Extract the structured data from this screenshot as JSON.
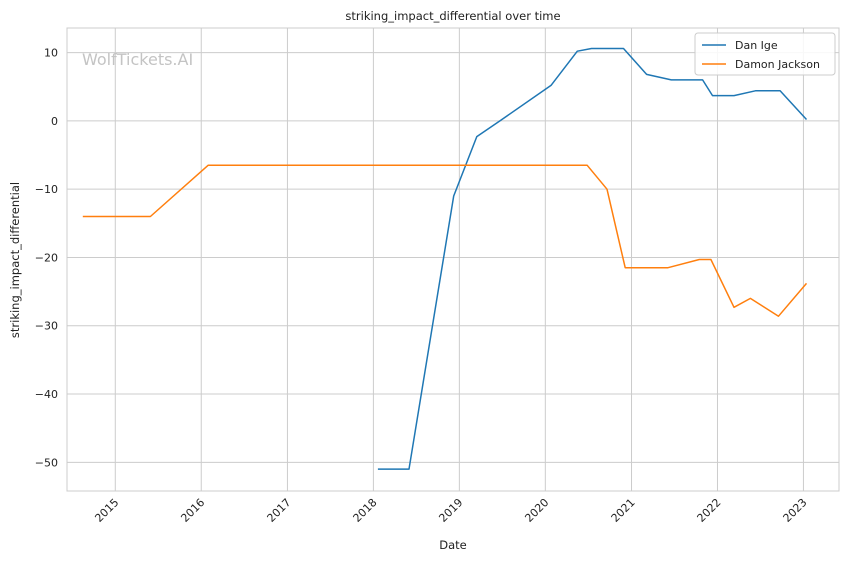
{
  "chart_data": {
    "type": "line",
    "title": "striking_impact_differential over time",
    "xlabel": "Date",
    "ylabel": "striking_impact_differential",
    "watermark": "WolfTickets.AI",
    "x_tick_labels": [
      "2015",
      "2016",
      "2017",
      "2018",
      "2019",
      "2020",
      "2021",
      "2022",
      "2023"
    ],
    "y_ticks": [
      10,
      0,
      -10,
      -20,
      -30,
      -40,
      -50
    ],
    "y_tick_labels": [
      "10",
      "0",
      "−10",
      "−20",
      "−30",
      "−40",
      "−50"
    ],
    "xlim": [
      "2014-06-10",
      "2023-06-01"
    ],
    "ylim": [
      -54.2,
      13.6
    ],
    "grid": true,
    "legend_position": "top-right",
    "series": [
      {
        "name": "Dan Ige",
        "color": "#1f77b4",
        "points": [
          {
            "x": "2018-01-20",
            "y": -51
          },
          {
            "x": "2018-06-01",
            "y": -51
          },
          {
            "x": "2018-12-08",
            "y": -11
          },
          {
            "x": "2019-03-16",
            "y": -2.3
          },
          {
            "x": "2019-06-22",
            "y": 0
          },
          {
            "x": "2020-01-25",
            "y": 5.2
          },
          {
            "x": "2020-05-16",
            "y": 10.2
          },
          {
            "x": "2020-07-15",
            "y": 10.6
          },
          {
            "x": "2020-11-28",
            "y": 10.6
          },
          {
            "x": "2021-03-06",
            "y": 6.8
          },
          {
            "x": "2021-06-19",
            "y": 6.0
          },
          {
            "x": "2021-10-30",
            "y": 6.0
          },
          {
            "x": "2021-12-11",
            "y": 3.7
          },
          {
            "x": "2022-03-12",
            "y": 3.7
          },
          {
            "x": "2022-06-11",
            "y": 4.4
          },
          {
            "x": "2022-09-24",
            "y": 4.4
          },
          {
            "x": "2023-01-14",
            "y": 0.2
          }
        ]
      },
      {
        "name": "Damon Jackson",
        "color": "#ff7f0e",
        "points": [
          {
            "x": "2014-08-16",
            "y": -14
          },
          {
            "x": "2015-05-30",
            "y": -14
          },
          {
            "x": "2016-01-30",
            "y": -6.5
          },
          {
            "x": "2020-06-27",
            "y": -6.5
          },
          {
            "x": "2020-09-19",
            "y": -10
          },
          {
            "x": "2020-12-05",
            "y": -21.5
          },
          {
            "x": "2021-06-05",
            "y": -21.5
          },
          {
            "x": "2021-10-16",
            "y": -20.3
          },
          {
            "x": "2021-12-04",
            "y": -20.3
          },
          {
            "x": "2022-03-12",
            "y": -27.3
          },
          {
            "x": "2022-05-21",
            "y": -26
          },
          {
            "x": "2022-09-17",
            "y": -28.6
          },
          {
            "x": "2023-01-14",
            "y": -23.8
          }
        ]
      }
    ]
  }
}
